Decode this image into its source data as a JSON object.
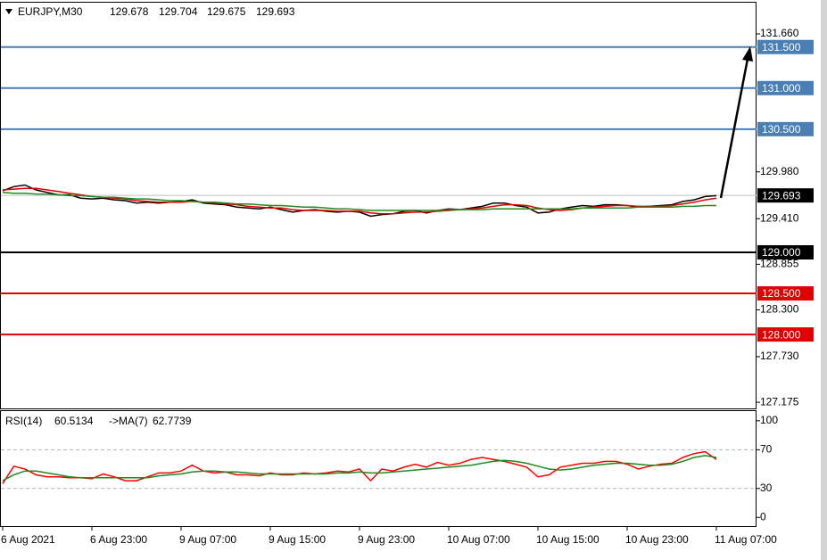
{
  "chart_data": [
    {
      "type": "line",
      "title": "EURJPY,M30",
      "ohlc": [
        129.678,
        129.704,
        129.675,
        129.693
      ],
      "series": [
        {
          "color": "#000000",
          "values": [
            129.75,
            129.8,
            129.82,
            129.76,
            129.73,
            129.7,
            129.7,
            129.66,
            129.65,
            129.66,
            129.64,
            129.63,
            129.6,
            129.61,
            129.6,
            129.61,
            129.62,
            129.64,
            129.6,
            129.59,
            129.58,
            129.55,
            129.54,
            129.53,
            129.55,
            129.52,
            129.49,
            129.51,
            129.52,
            129.5,
            129.49,
            129.5,
            129.49,
            129.44,
            129.46,
            129.47,
            129.5,
            129.51,
            129.48,
            129.51,
            129.53,
            129.52,
            129.54,
            129.56,
            129.6,
            129.6,
            129.57,
            129.55,
            129.48,
            129.49,
            129.53,
            129.55,
            129.57,
            129.56,
            129.58,
            129.58,
            129.57,
            129.55,
            129.56,
            129.57,
            129.58,
            129.62,
            129.64,
            129.68,
            129.69
          ]
        },
        {
          "color": "#e00000",
          "values": [
            129.76,
            129.77,
            129.78,
            129.78,
            129.76,
            129.74,
            129.72,
            129.7,
            129.68,
            129.67,
            129.66,
            129.65,
            129.63,
            129.62,
            129.61,
            129.61,
            129.61,
            129.62,
            129.61,
            129.6,
            129.59,
            129.58,
            129.56,
            129.55,
            129.54,
            129.54,
            129.52,
            129.51,
            129.51,
            129.51,
            129.5,
            129.5,
            129.5,
            129.48,
            129.47,
            129.47,
            129.48,
            129.49,
            129.49,
            129.5,
            129.51,
            129.52,
            129.53,
            129.54,
            129.56,
            129.58,
            129.58,
            129.57,
            129.54,
            129.52,
            129.51,
            129.52,
            129.54,
            129.55,
            129.56,
            129.57,
            129.57,
            129.56,
            129.56,
            129.56,
            129.57,
            129.59,
            129.61,
            129.64,
            129.66
          ]
        },
        {
          "color": "#1f8a1f",
          "values": [
            129.73,
            129.72,
            129.72,
            129.71,
            129.71,
            129.7,
            129.69,
            129.69,
            129.68,
            129.67,
            129.67,
            129.66,
            129.65,
            129.65,
            129.64,
            129.63,
            129.63,
            129.62,
            129.61,
            129.61,
            129.6,
            129.59,
            129.59,
            129.58,
            129.57,
            129.57,
            129.56,
            129.55,
            129.55,
            129.54,
            129.53,
            129.53,
            129.52,
            129.51,
            129.51,
            129.51,
            129.51,
            129.51,
            129.51,
            129.51,
            129.52,
            129.52,
            129.52,
            129.52,
            129.53,
            129.53,
            129.53,
            129.53,
            129.53,
            129.53,
            129.53,
            129.53,
            129.54,
            129.54,
            129.54,
            129.54,
            129.54,
            129.55,
            129.55,
            129.55,
            129.55,
            129.56,
            129.56,
            129.57,
            129.57
          ]
        }
      ],
      "ylim": [
        127.1,
        132.04
      ],
      "yticks": [
        {
          "value": 131.66,
          "label": "131.660"
        },
        {
          "value": 129.98,
          "label": "129.980"
        },
        {
          "value": 129.41,
          "label": "129.410"
        },
        {
          "value": 128.855,
          "label": "128.855"
        },
        {
          "value": 128.3,
          "label": "128.300"
        },
        {
          "value": 127.73,
          "label": "127.730"
        },
        {
          "value": 127.175,
          "label": "127.175"
        }
      ],
      "levels": [
        {
          "value": 131.5,
          "label": "131.500",
          "color": "#4a7fb5"
        },
        {
          "value": 131,
          "label": "131.000",
          "color": "#4a7fb5"
        },
        {
          "value": 130.5,
          "label": "130.500",
          "color": "#4a7fb5"
        },
        {
          "value": 129,
          "label": "129.000",
          "color": "#000000"
        },
        {
          "value": 128.5,
          "label": "128.500",
          "color": "#e00000"
        },
        {
          "value": 128,
          "label": "128.000",
          "color": "#e00000"
        }
      ],
      "current_price": {
        "value": 129.693,
        "label": "129.693"
      }
    },
    {
      "type": "line",
      "title": "RSI(14)",
      "value": 60.5134,
      "ma_label": "->MA(7)",
      "ma_value": 62.7739,
      "categories": [
        "6 Aug 2021",
        null,
        null,
        null,
        null,
        null,
        null,
        null,
        "6 Aug 23:00",
        null,
        null,
        null,
        null,
        null,
        null,
        null,
        "9 Aug 07:00",
        null,
        null,
        null,
        null,
        null,
        null,
        null,
        "9 Aug 15:00",
        null,
        null,
        null,
        null,
        null,
        null,
        null,
        "9 Aug 23:00",
        null,
        null,
        null,
        null,
        null,
        null,
        null,
        "10 Aug 07:00",
        null,
        null,
        null,
        null,
        null,
        null,
        null,
        "10 Aug 15:00",
        null,
        null,
        null,
        null,
        null,
        null,
        null,
        "10 Aug 23:00",
        null,
        null,
        null,
        null,
        null,
        null,
        null,
        "11 Aug 07:00"
      ],
      "series": [
        {
          "color": "#ff0000",
          "values": [
            35,
            53,
            50,
            44,
            42,
            42,
            41,
            41,
            40,
            45,
            42,
            38,
            38,
            42,
            46,
            46,
            48,
            54,
            48,
            46,
            47,
            44,
            44,
            43,
            46,
            44,
            44,
            46,
            45,
            46,
            48,
            47,
            50,
            38,
            50,
            48,
            52,
            55,
            52,
            57,
            54,
            56,
            60,
            62,
            60,
            58,
            55,
            52,
            42,
            44,
            52,
            54,
            56,
            56,
            58,
            58,
            55,
            50,
            53,
            55,
            56,
            62,
            66,
            68,
            60
          ]
        },
        {
          "color": "#1f8a1f",
          "values": [
            38,
            44,
            48,
            48,
            46,
            44,
            42,
            41,
            41,
            41,
            41,
            41,
            41,
            41,
            43,
            44,
            45,
            47,
            48,
            48,
            47,
            47,
            46,
            45,
            45,
            45,
            45,
            45,
            45,
            45,
            46,
            46,
            47,
            46,
            46,
            47,
            48,
            49,
            50,
            51,
            52,
            53,
            54,
            56,
            58,
            59,
            58,
            56,
            53,
            50,
            49,
            50,
            52,
            54,
            55,
            56,
            56,
            55,
            54,
            54,
            55,
            58,
            62,
            64,
            62
          ]
        }
      ],
      "ylim": [
        -9,
        110
      ],
      "yticks": [
        100,
        70,
        30,
        0
      ],
      "levels": [
        70,
        30
      ]
    }
  ]
}
